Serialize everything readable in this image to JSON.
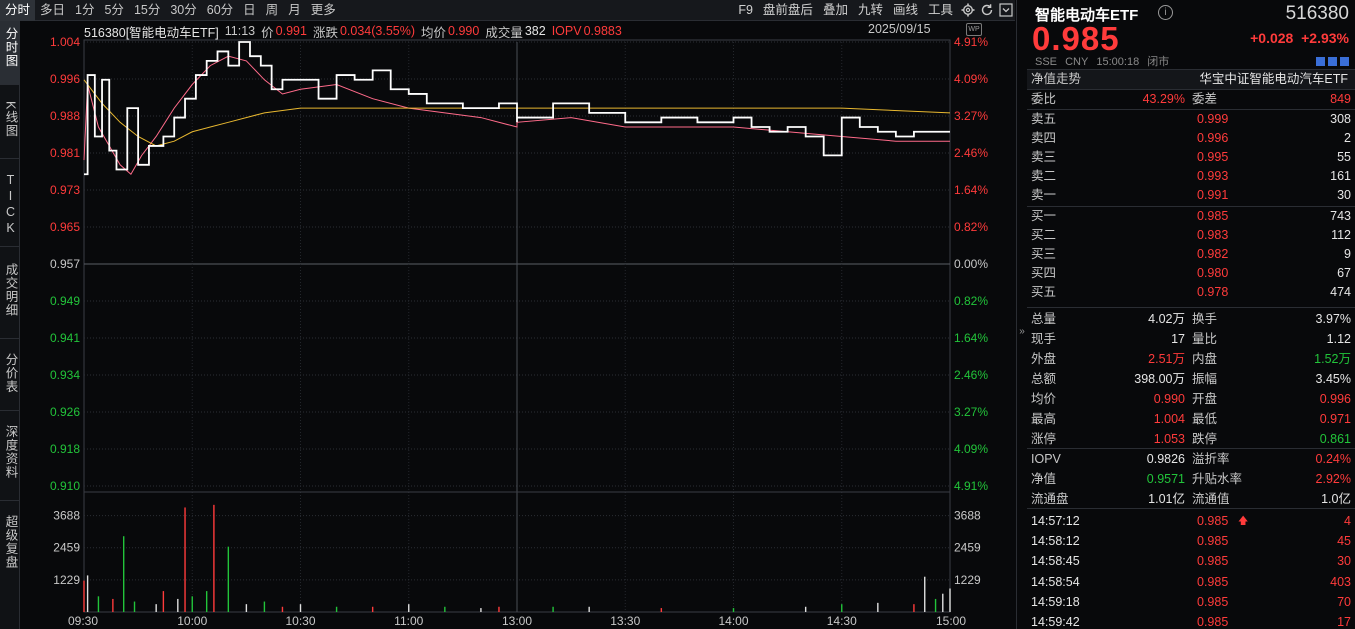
{
  "toolbar": {
    "timeframes": [
      "分时",
      "多日",
      "1分",
      "5分",
      "15分",
      "30分",
      "60分",
      "日",
      "周",
      "月",
      "更多"
    ],
    "active_timeframe": "分时",
    "tools": [
      "F9",
      "盘前盘后",
      "叠加",
      "九转",
      "画线",
      "工具"
    ]
  },
  "side_tabs": [
    "分时图",
    "K线图",
    "TICK",
    "成交明细",
    "分价表",
    "深度资料",
    "超级复盘"
  ],
  "info": {
    "code_name": "516380[智能电动车ETF]",
    "time": "11:13",
    "price_label": "价",
    "price": "0.991",
    "change_label": "涨跌",
    "change": "0.034(3.55%)",
    "avg_label": "均价",
    "avg": "0.990",
    "volume_label": "成交量",
    "volume": "382",
    "iopv_label": "IOPV",
    "iopv": "0.9883",
    "date": "2025/09/15",
    "wp_badge": "WP"
  },
  "price_axis": {
    "left_labels": [
      "1.004",
      "0.996",
      "0.988",
      "0.981",
      "0.973",
      "0.965",
      "0.957",
      "0.949",
      "0.941",
      "0.934",
      "0.926",
      "0.918",
      "0.910"
    ],
    "right_labels": [
      "4.91%",
      "4.09%",
      "3.27%",
      "2.46%",
      "1.64%",
      "0.82%",
      "0.00%",
      "0.82%",
      "1.64%",
      "2.46%",
      "3.27%",
      "4.09%",
      "4.91%"
    ],
    "volume_labels": [
      "3688",
      "2459",
      "1229"
    ],
    "time_labels": [
      "09:30",
      "10:00",
      "10:30",
      "11:00",
      "13:00",
      "13:30",
      "14:00",
      "14:30",
      "15:00"
    ]
  },
  "chart_data": {
    "type": "line",
    "title": "516380[智能电动车ETF]",
    "ylim": [
      0.91,
      1.004
    ],
    "prev_close": 0.957,
    "series": [
      {
        "name": "价",
        "color": "#ffffff",
        "x": [
          "09:30",
          "09:31",
          "09:33",
          "09:35",
          "09:37",
          "09:39",
          "09:42",
          "09:45",
          "09:48",
          "09:52",
          "09:55",
          "09:58",
          "10:01",
          "10:04",
          "10:07",
          "10:10",
          "10:13",
          "10:16",
          "10:19",
          "10:22",
          "10:25",
          "10:28",
          "10:31",
          "10:35",
          "10:40",
          "10:45",
          "10:50",
          "10:55",
          "11:00",
          "11:05",
          "11:10",
          "11:15",
          "11:20",
          "11:25",
          "11:30",
          "13:00",
          "13:10",
          "13:20",
          "13:30",
          "13:40",
          "13:50",
          "14:00",
          "14:05",
          "14:10",
          "14:15",
          "14:20",
          "14:25",
          "14:30",
          "14:35",
          "14:40",
          "14:45",
          "14:50",
          "14:55",
          "15:00"
        ],
        "values": [
          0.976,
          0.997,
          0.984,
          0.996,
          0.981,
          0.977,
          0.99,
          0.978,
          0.982,
          0.984,
          0.988,
          0.992,
          0.997,
          1.0,
          1.002,
          0.999,
          1.004,
          1.001,
          0.999,
          0.994,
          0.996,
          0.996,
          0.996,
          0.992,
          0.997,
          0.996,
          0.998,
          0.994,
          0.993,
          0.991,
          0.991,
          0.99,
          0.99,
          0.991,
          0.987,
          0.988,
          0.991,
          0.989,
          0.987,
          0.988,
          0.987,
          0.988,
          0.986,
          0.985,
          0.986,
          0.984,
          0.98,
          0.988,
          0.986,
          0.985,
          0.984,
          0.985,
          0.985,
          0.985
        ]
      },
      {
        "name": "均价",
        "color": "#e8b830",
        "x": [
          "09:30",
          "09:35",
          "09:40",
          "09:45",
          "09:50",
          "09:55",
          "10:00",
          "10:05",
          "10:10",
          "10:20",
          "10:30",
          "11:00",
          "11:30",
          "13:00",
          "13:30",
          "14:00",
          "14:30",
          "15:00"
        ],
        "values": [
          0.996,
          0.991,
          0.987,
          0.984,
          0.982,
          0.983,
          0.985,
          0.986,
          0.987,
          0.989,
          0.99,
          0.99,
          0.99,
          0.99,
          0.99,
          0.99,
          0.99,
          0.989
        ]
      },
      {
        "name": "IOPV",
        "color": "#ff6b8a",
        "x": [
          "09:30",
          "09:31",
          "09:34",
          "09:37",
          "09:40",
          "09:43",
          "09:46",
          "09:50",
          "09:55",
          "10:00",
          "10:05",
          "10:10",
          "10:15",
          "10:20",
          "10:25",
          "10:30",
          "10:40",
          "10:50",
          "11:00",
          "11:10",
          "11:20",
          "11:30",
          "13:00",
          "13:15",
          "13:30",
          "13:45",
          "14:00",
          "14:15",
          "14:30",
          "14:45",
          "15:00"
        ],
        "values": [
          0.979,
          0.995,
          0.986,
          0.982,
          0.978,
          0.976,
          0.98,
          0.984,
          0.99,
          0.995,
          0.999,
          1.001,
          1.0,
          0.996,
          0.993,
          0.994,
          0.995,
          0.992,
          0.99,
          0.989,
          0.988,
          0.986,
          0.987,
          0.988,
          0.986,
          0.986,
          0.986,
          0.985,
          0.984,
          0.983,
          0.983
        ]
      }
    ],
    "volume": {
      "x": [
        "09:30",
        "09:31",
        "09:34",
        "09:38",
        "09:41",
        "09:44",
        "09:50",
        "09:52",
        "09:56",
        "09:58",
        "10:00",
        "10:04",
        "10:06",
        "10:10",
        "10:15",
        "10:20",
        "10:25",
        "10:30",
        "10:40",
        "10:50",
        "11:00",
        "11:10",
        "11:20",
        "11:25",
        "13:10",
        "13:20",
        "13:40",
        "14:00",
        "14:20",
        "14:30",
        "14:40",
        "14:50",
        "14:53",
        "14:56",
        "14:58",
        "15:00"
      ],
      "values": [
        1200,
        1400,
        600,
        500,
        2900,
        400,
        300,
        800,
        500,
        4000,
        600,
        800,
        4100,
        2500,
        300,
        400,
        200,
        300,
        200,
        200,
        300,
        200,
        150,
        200,
        200,
        200,
        150,
        150,
        200,
        300,
        350,
        300,
        1350,
        500,
        700,
        900
      ],
      "colors": [
        "red",
        "white",
        "green",
        "red",
        "green",
        "green",
        "white",
        "red",
        "white",
        "red",
        "green",
        "green",
        "red",
        "green",
        "white",
        "green",
        "red",
        "white",
        "green",
        "red",
        "white",
        "green",
        "white",
        "red",
        "green",
        "white",
        "red",
        "green",
        "white",
        "green",
        "white",
        "red",
        "white",
        "green",
        "white",
        "white"
      ]
    }
  },
  "panel": {
    "name": "智能电动车ETF",
    "code": "516380",
    "price": "0.985",
    "change": "+0.028",
    "change_pct": "+2.93%",
    "sub": [
      "SSE",
      "CNY",
      "15:00:18",
      "闭市"
    ],
    "nav_trend_label": "净值走势",
    "index_name": "华宝中证智能电动汽车ETF",
    "webi_label": "委比",
    "webi": "43.29%",
    "weicha_label": "委差",
    "weicha": "849",
    "asks": [
      {
        "label": "卖五",
        "price": "0.999",
        "vol": "308"
      },
      {
        "label": "卖四",
        "price": "0.996",
        "vol": "2"
      },
      {
        "label": "卖三",
        "price": "0.995",
        "vol": "55"
      },
      {
        "label": "卖二",
        "price": "0.993",
        "vol": "161"
      },
      {
        "label": "卖一",
        "price": "0.991",
        "vol": "30"
      }
    ],
    "bids": [
      {
        "label": "买一",
        "price": "0.985",
        "vol": "743"
      },
      {
        "label": "买二",
        "price": "0.983",
        "vol": "112"
      },
      {
        "label": "买三",
        "price": "0.982",
        "vol": "9"
      },
      {
        "label": "买四",
        "price": "0.980",
        "vol": "67"
      },
      {
        "label": "买五",
        "price": "0.978",
        "vol": "474"
      }
    ],
    "stats": [
      {
        "l1": "总量",
        "v1": "4.02万",
        "c1": "white",
        "l2": "换手",
        "v2": "3.97%",
        "c2": "white"
      },
      {
        "l1": "现手",
        "v1": "17",
        "c1": "white",
        "l2": "量比",
        "v2": "1.12",
        "c2": "white"
      },
      {
        "l1": "外盘",
        "v1": "2.51万",
        "c1": "red",
        "l2": "内盘",
        "v2": "1.52万",
        "c2": "green"
      },
      {
        "l1": "总额",
        "v1": "398.00万",
        "c1": "white",
        "l2": "振幅",
        "v2": "3.45%",
        "c2": "white"
      },
      {
        "l1": "均价",
        "v1": "0.990",
        "c1": "red",
        "l2": "开盘",
        "v2": "0.996",
        "c2": "red"
      },
      {
        "l1": "最高",
        "v1": "1.004",
        "c1": "red",
        "l2": "最低",
        "v2": "0.971",
        "c2": "red"
      },
      {
        "l1": "涨停",
        "v1": "1.053",
        "c1": "red",
        "l2": "跌停",
        "v2": "0.861",
        "c2": "green"
      }
    ],
    "etf_stats": [
      {
        "l1": "IOPV",
        "v1": "0.9826",
        "c1": "white",
        "l2": "溢折率",
        "v2": "0.24%",
        "c2": "red"
      },
      {
        "l1": "净值",
        "v1": "0.9571",
        "c1": "green",
        "l2": "升贴水率",
        "v2": "2.92%",
        "c2": "red"
      },
      {
        "l1": "流通盘",
        "v1": "1.01亿",
        "c1": "white",
        "l2": "流通值",
        "v2": "1.0亿",
        "c2": "white"
      }
    ],
    "ticks": [
      {
        "time": "14:57:12",
        "price": "0.985",
        "vol": "4",
        "arrow": "up"
      },
      {
        "time": "14:58:12",
        "price": "0.985",
        "vol": "45"
      },
      {
        "time": "14:58:45",
        "price": "0.985",
        "vol": "30"
      },
      {
        "time": "14:58:54",
        "price": "0.985",
        "vol": "403"
      },
      {
        "time": "14:59:18",
        "price": "0.985",
        "vol": "70"
      },
      {
        "time": "14:59:42",
        "price": "0.985",
        "vol": "17"
      }
    ]
  }
}
